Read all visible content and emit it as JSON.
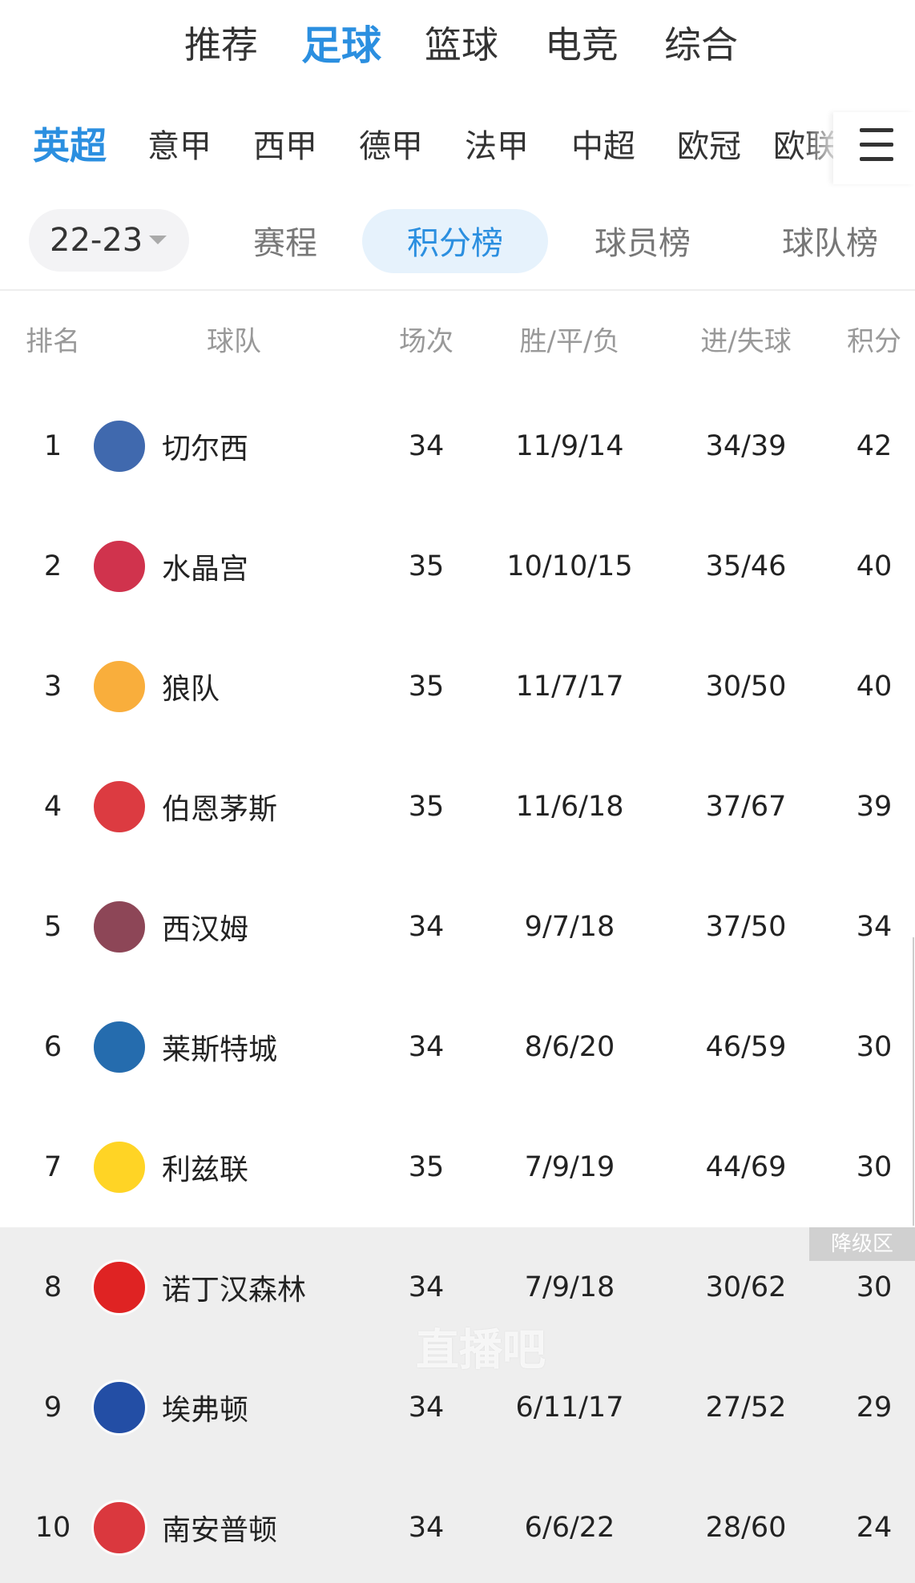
{
  "top_tabs": {
    "items": [
      "推荐",
      "足球",
      "篮球",
      "电竞",
      "综合"
    ],
    "active": 1
  },
  "league_tabs": {
    "items": [
      "英超",
      "意甲",
      "西甲",
      "德甲",
      "法甲",
      "中超",
      "欧冠",
      "欧联"
    ],
    "active": 0
  },
  "season": "22-23",
  "sub_tabs": {
    "items": [
      "赛程",
      "积分榜",
      "球员榜",
      "球队榜"
    ],
    "active": 1
  },
  "table": {
    "headers": [
      "排名",
      "球队",
      "场次",
      "胜/平/负",
      "进/失球",
      "积分"
    ],
    "rows": [
      [
        1,
        "切尔西",
        34,
        "11/9/14",
        "34/39",
        42
      ],
      [
        2,
        "水晶宫",
        35,
        "10/10/15",
        "35/46",
        40
      ],
      [
        3,
        "狼队",
        35,
        "11/7/17",
        "30/50",
        40
      ],
      [
        4,
        "伯恩茅斯",
        35,
        "11/6/18",
        "37/67",
        39
      ],
      [
        5,
        "西汉姆",
        34,
        "9/7/18",
        "37/50",
        34
      ],
      [
        6,
        "莱斯特城",
        34,
        "8/6/20",
        "46/59",
        30
      ],
      [
        7,
        "利兹联",
        35,
        "7/9/19",
        "44/69",
        30
      ],
      [
        8,
        "诺丁汉森林",
        34,
        "7/9/18",
        "30/62",
        30
      ],
      [
        9,
        "埃弗顿",
        34,
        "6/11/17",
        "27/52",
        29
      ],
      [
        10,
        "南安普顿",
        34,
        "6/6/22",
        "28/60",
        24
      ]
    ],
    "relegation_label": "降级区",
    "relegation_from_row": 7
  },
  "watermark": "直播吧"
}
